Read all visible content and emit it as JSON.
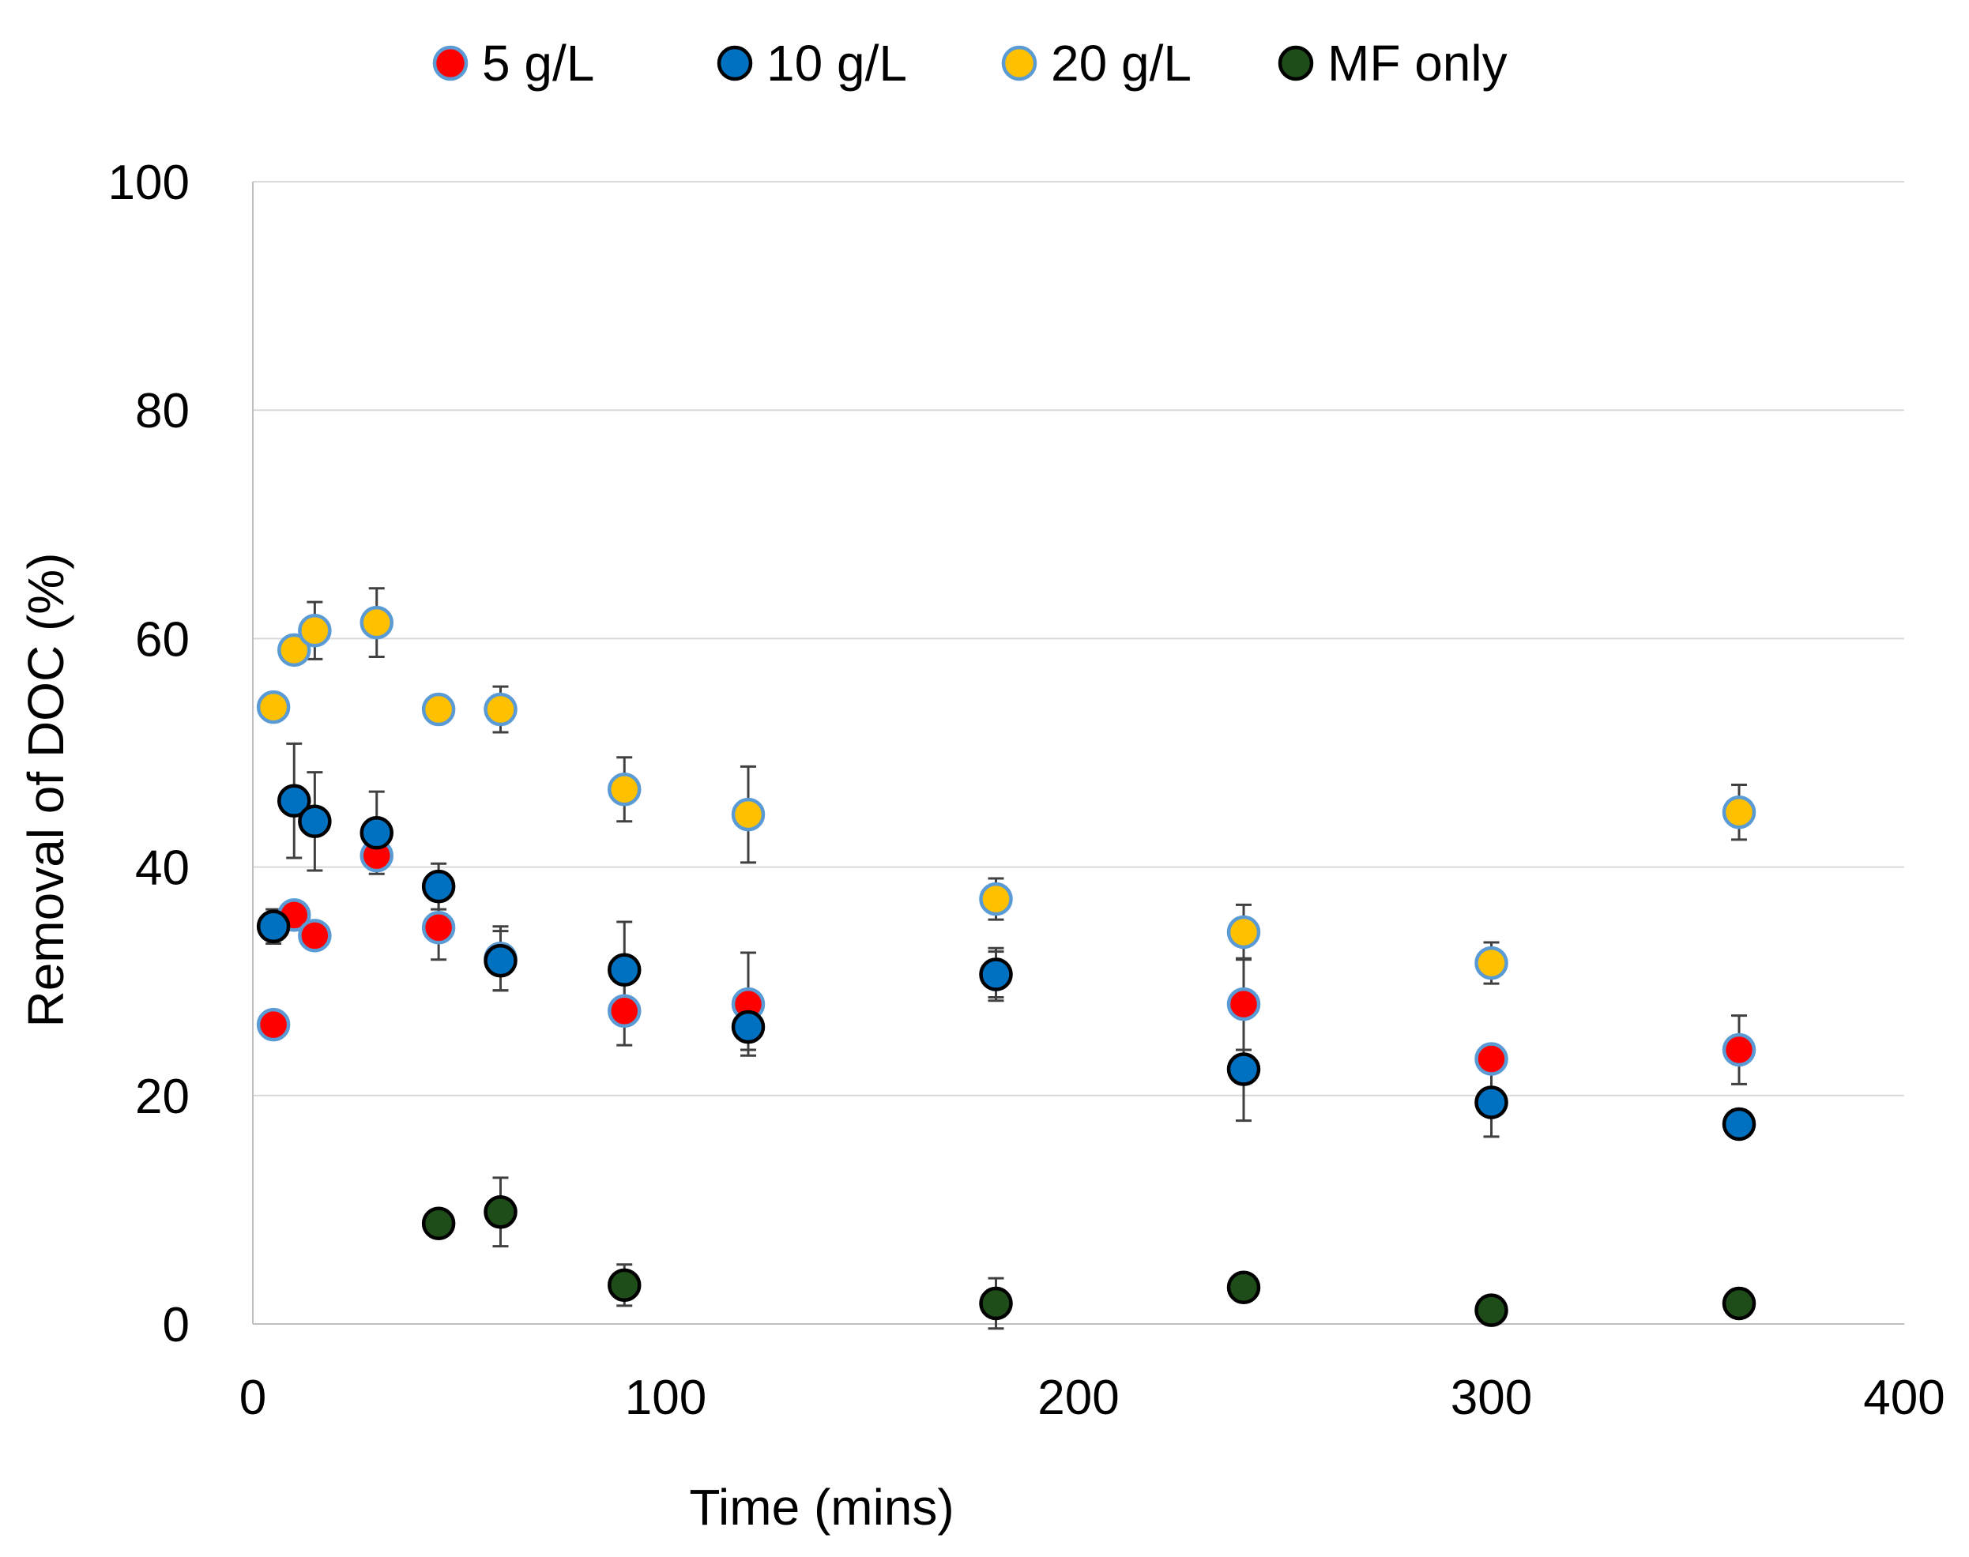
{
  "chart_data": {
    "type": "scatter",
    "title": "",
    "xlabel": "Time (mins)",
    "ylabel": "Removal of DOC (%)",
    "xlim": [
      0,
      400
    ],
    "ylim": [
      0,
      100
    ],
    "x_ticks": [
      0,
      100,
      200,
      300,
      400
    ],
    "y_ticks": [
      0,
      20,
      40,
      60,
      80,
      100
    ],
    "grid": "horizontal",
    "legend_position": "top",
    "series": [
      {
        "name": "5 g/L",
        "color": "#ff0000",
        "edge_color": "#5b9bd5",
        "points": [
          {
            "x": 5,
            "y": 26.2,
            "err": 0
          },
          {
            "x": 10,
            "y": 35.8,
            "err": 0
          },
          {
            "x": 15,
            "y": 34.0,
            "err": 0
          },
          {
            "x": 30,
            "y": 41.0,
            "err": 0
          },
          {
            "x": 45,
            "y": 34.7,
            "err": 2.8
          },
          {
            "x": 60,
            "y": 32.0,
            "err": 2.8
          },
          {
            "x": 90,
            "y": 27.4,
            "err": 3.0
          },
          {
            "x": 120,
            "y": 28.0,
            "err": 4.5
          },
          {
            "x": 180,
            "y": 30.6,
            "err": 2.0
          },
          {
            "x": 240,
            "y": 28.0,
            "err": 4.0
          },
          {
            "x": 300,
            "y": 23.2,
            "err": 0
          },
          {
            "x": 360,
            "y": 24.0,
            "err": 3.0
          }
        ]
      },
      {
        "name": "10 g/L",
        "color": "#0070c0",
        "edge_color": "#000000",
        "points": [
          {
            "x": 5,
            "y": 34.8,
            "err": 1.5
          },
          {
            "x": 10,
            "y": 45.8,
            "err": 5.0
          },
          {
            "x": 15,
            "y": 44.0,
            "err": 4.3
          },
          {
            "x": 30,
            "y": 43.0,
            "err": 3.6
          },
          {
            "x": 45,
            "y": 38.3,
            "err": 2.0
          },
          {
            "x": 60,
            "y": 31.8,
            "err": 2.6
          },
          {
            "x": 90,
            "y": 31.0,
            "err": 4.2
          },
          {
            "x": 120,
            "y": 26.0,
            "err": 2.0
          },
          {
            "x": 180,
            "y": 30.6,
            "err": 2.3
          },
          {
            "x": 240,
            "y": 22.3,
            "err": 4.5
          },
          {
            "x": 300,
            "y": 19.4,
            "err": 3.0
          },
          {
            "x": 360,
            "y": 17.5,
            "err": 0
          }
        ]
      },
      {
        "name": "20 g/L",
        "color": "#ffc000",
        "edge_color": "#5b9bd5",
        "points": [
          {
            "x": 5,
            "y": 54.0,
            "err": 0
          },
          {
            "x": 10,
            "y": 59.0,
            "err": 0
          },
          {
            "x": 15,
            "y": 60.7,
            "err": 2.5
          },
          {
            "x": 30,
            "y": 61.4,
            "err": 3.0
          },
          {
            "x": 45,
            "y": 53.8,
            "err": 0
          },
          {
            "x": 60,
            "y": 53.8,
            "err": 2.0
          },
          {
            "x": 90,
            "y": 46.8,
            "err": 2.8
          },
          {
            "x": 120,
            "y": 44.6,
            "err": 4.2
          },
          {
            "x": 180,
            "y": 37.2,
            "err": 1.8
          },
          {
            "x": 240,
            "y": 34.3,
            "err": 2.4
          },
          {
            "x": 300,
            "y": 31.6,
            "err": 1.8
          },
          {
            "x": 360,
            "y": 44.8,
            "err": 2.4
          }
        ]
      },
      {
        "name": "MF only",
        "color": "#1e4d1a",
        "edge_color": "#000000",
        "points": [
          {
            "x": 45,
            "y": 8.8,
            "err": 0
          },
          {
            "x": 60,
            "y": 9.8,
            "err": 3.0
          },
          {
            "x": 90,
            "y": 3.4,
            "err": 1.8
          },
          {
            "x": 180,
            "y": 1.8,
            "err": 2.2
          },
          {
            "x": 240,
            "y": 3.2,
            "err": 0
          },
          {
            "x": 300,
            "y": 1.2,
            "err": 0
          },
          {
            "x": 360,
            "y": 1.8,
            "err": 0
          }
        ]
      }
    ]
  }
}
